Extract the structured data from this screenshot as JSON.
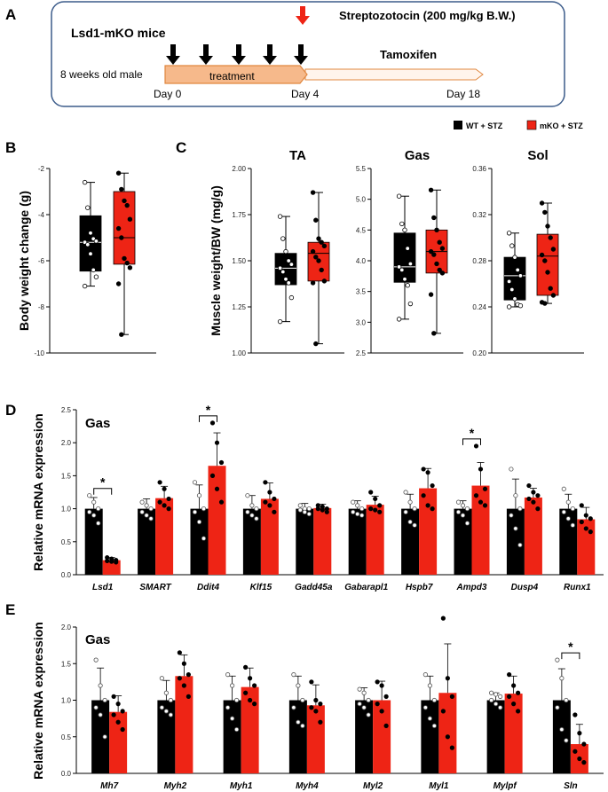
{
  "panel_labels": {
    "a": "A",
    "b": "B",
    "c": "C",
    "d": "D",
    "e": "E"
  },
  "legend": {
    "wt": "WT + STZ",
    "mko": "mKO + STZ"
  },
  "colors": {
    "wt": "#000000",
    "mko": "#ee2415",
    "arrow_black": "#000000",
    "arrow_red": "#ee2415",
    "box_border": "#3b5b8a",
    "treat_fill": "#f6b98b",
    "treat_border": "#e0873f",
    "tam_fill": "#fff4ec"
  },
  "schema": {
    "mice": "Lsd1-mKO mice",
    "stz": "Streptozotocin (200 mg/kg B.W.)",
    "tamoxifen": "Tamoxifen",
    "age": "8 weeks old male",
    "treatment": "treatment",
    "day0": "Day 0",
    "day4": "Day 4",
    "day18": "Day 18"
  },
  "chart_data": [
    {
      "id": "B",
      "type": "box",
      "title": "",
      "ylabel": "Body weight change (g)",
      "ylim": [
        -10,
        -2
      ],
      "yticks": [
        -10,
        -8,
        -6,
        -4,
        -2
      ],
      "tick_labels": [
        "-10",
        "-8",
        "-6",
        "-4",
        "-2"
      ],
      "groups": [
        {
          "name": "WT + STZ",
          "min": -7.1,
          "q1": -6.45,
          "median": -5.2,
          "q3": -4.05,
          "max": -2.6,
          "points": [
            -2.6,
            -3.7,
            -4.8,
            -5.05,
            -5.15,
            -5.2,
            -5.3,
            -5.7,
            -6.4,
            -6.7,
            -7.1
          ]
        },
        {
          "name": "mKO + STZ",
          "min": -9.2,
          "q1": -6.15,
          "median": -5.0,
          "q3": -3.0,
          "max": -2.2,
          "points": [
            -2.2,
            -2.9,
            -3.4,
            -3.6,
            -4.2,
            -4.6,
            -5.0,
            -5.9,
            -6.1,
            -6.3,
            -7.0,
            -9.2
          ]
        }
      ]
    },
    {
      "id": "C-TA",
      "type": "box",
      "title": "TA",
      "ylabel": "Muscle weight/BW (mg/g)",
      "ylim": [
        1.0,
        2.0
      ],
      "yticks": [
        1.0,
        1.25,
        1.5,
        1.75,
        2.0
      ],
      "tick_labels": [
        "1.00",
        "1.25",
        "1.50",
        "1.75",
        "2.00"
      ],
      "groups": [
        {
          "name": "WT + STZ",
          "min": 1.17,
          "q1": 1.37,
          "median": 1.46,
          "q3": 1.54,
          "max": 1.74,
          "points": [
            1.74,
            1.62,
            1.55,
            1.5,
            1.48,
            1.46,
            1.44,
            1.4,
            1.38,
            1.3,
            1.17
          ]
        },
        {
          "name": "mKO + STZ",
          "min": 1.05,
          "q1": 1.39,
          "median": 1.54,
          "q3": 1.6,
          "max": 1.87,
          "points": [
            1.87,
            1.72,
            1.62,
            1.6,
            1.58,
            1.55,
            1.52,
            1.5,
            1.45,
            1.39,
            1.38,
            1.05
          ]
        }
      ]
    },
    {
      "id": "C-Gas",
      "type": "box",
      "title": "Gas",
      "ylabel": "",
      "ylim": [
        2.5,
        5.5
      ],
      "yticks": [
        2.5,
        3.0,
        3.5,
        4.0,
        4.5,
        5.0,
        5.5
      ],
      "tick_labels": [
        "2.5",
        "3.0",
        "3.5",
        "4.0",
        "4.5",
        "5.0",
        "5.5"
      ],
      "groups": [
        {
          "name": "WT + STZ",
          "min": 3.05,
          "q1": 3.65,
          "median": 3.9,
          "q3": 4.45,
          "max": 5.05,
          "points": [
            5.05,
            4.6,
            4.5,
            4.2,
            3.95,
            3.9,
            3.85,
            3.7,
            3.6,
            3.3,
            3.05
          ]
        },
        {
          "name": "mKO + STZ",
          "min": 2.82,
          "q1": 3.8,
          "median": 4.15,
          "q3": 4.5,
          "max": 5.15,
          "points": [
            5.15,
            4.7,
            4.5,
            4.3,
            4.2,
            4.15,
            4.1,
            3.95,
            3.85,
            3.8,
            3.45,
            2.82
          ]
        }
      ]
    },
    {
      "id": "C-Sol",
      "type": "box",
      "title": "Sol",
      "ylabel": "",
      "ylim": [
        0.2,
        0.36
      ],
      "yticks": [
        0.2,
        0.24,
        0.28,
        0.32,
        0.36
      ],
      "tick_labels": [
        "0.20",
        "0.24",
        "0.28",
        "0.32",
        "0.36"
      ],
      "groups": [
        {
          "name": "WT + STZ",
          "min": 0.24,
          "q1": 0.246,
          "median": 0.267,
          "q3": 0.283,
          "max": 0.304,
          "points": [
            0.304,
            0.293,
            0.283,
            0.272,
            0.267,
            0.262,
            0.255,
            0.247,
            0.242,
            0.241,
            0.24
          ]
        },
        {
          "name": "mKO + STZ",
          "min": 0.243,
          "q1": 0.25,
          "median": 0.284,
          "q3": 0.303,
          "max": 0.33,
          "points": [
            0.33,
            0.322,
            0.31,
            0.3,
            0.29,
            0.285,
            0.28,
            0.27,
            0.256,
            0.25,
            0.244,
            0.243
          ]
        }
      ]
    },
    {
      "id": "D",
      "type": "bar",
      "title": "Gas",
      "ylabel": "Relative mRNA expression",
      "ylim": [
        0,
        2.5
      ],
      "yticks": [
        0,
        0.5,
        1.0,
        1.5,
        2.0,
        2.5
      ],
      "tick_labels": [
        "0.0",
        "0.5",
        "1.0",
        "1.5",
        "2.0",
        "2.5"
      ],
      "categories": [
        "Lsd1",
        "SMART",
        "Ddit4",
        "Klf15",
        "Gadd45a",
        "Gabarapl1",
        "Hspb7",
        "Ampd3",
        "Dusp4",
        "Runx1"
      ],
      "series": [
        {
          "name": "WT + STZ",
          "values": [
            1.0,
            1.0,
            1.0,
            1.0,
            1.0,
            1.0,
            1.0,
            1.0,
            1.0,
            1.0
          ],
          "errors": [
            0.17,
            0.15,
            0.36,
            0.2,
            0.08,
            0.12,
            0.22,
            0.12,
            0.45,
            0.22
          ],
          "points": [
            [
              1.2,
              1.1,
              1.0,
              0.95,
              0.9,
              0.78
            ],
            [
              1.1,
              1.05,
              1.0,
              0.95,
              0.9,
              0.85
            ],
            [
              1.4,
              1.2,
              1.0,
              0.95,
              0.8,
              0.55
            ],
            [
              1.2,
              1.05,
              1.0,
              0.95,
              0.9,
              0.85
            ],
            [
              1.05,
              1.0,
              1.0,
              0.98,
              0.95,
              0.92
            ],
            [
              1.1,
              1.05,
              1.0,
              0.95,
              0.92,
              0.9
            ],
            [
              1.25,
              1.1,
              1.0,
              0.95,
              0.8,
              0.75
            ],
            [
              1.1,
              1.05,
              1.0,
              0.95,
              0.9,
              0.78
            ],
            [
              1.6,
              1.2,
              1.0,
              0.9,
              0.7,
              0.45
            ],
            [
              1.3,
              1.1,
              1.0,
              0.95,
              0.85,
              0.75
            ]
          ]
        },
        {
          "name": "mKO + STZ",
          "values": [
            0.22,
            1.16,
            1.65,
            1.15,
            1.01,
            1.06,
            1.31,
            1.35,
            1.17,
            0.84
          ],
          "errors": [
            0.04,
            0.18,
            0.5,
            0.24,
            0.06,
            0.13,
            0.3,
            0.35,
            0.14,
            0.18
          ],
          "points": [
            [
              0.26,
              0.24,
              0.22,
              0.21,
              0.2,
              0.19
            ],
            [
              1.4,
              1.3,
              1.15,
              1.1,
              1.05,
              1.0
            ],
            [
              2.3,
              2.0,
              1.7,
              1.5,
              1.3,
              1.1
            ],
            [
              1.4,
              1.25,
              1.15,
              1.1,
              1.05,
              0.95
            ],
            [
              1.05,
              1.03,
              1.0,
              1.0,
              0.98,
              0.95
            ],
            [
              1.25,
              1.15,
              1.05,
              1.0,
              0.98,
              0.95
            ],
            [
              1.6,
              1.55,
              1.35,
              1.2,
              1.05,
              1.0
            ],
            [
              1.95,
              1.6,
              1.3,
              1.2,
              1.1,
              1.05
            ],
            [
              1.35,
              1.25,
              1.2,
              1.15,
              1.1,
              1.0
            ],
            [
              1.05,
              0.9,
              0.85,
              0.8,
              0.7,
              0.65
            ]
          ]
        }
      ],
      "significance": [
        {
          "category": "Lsd1",
          "label": "*"
        },
        {
          "category": "Ddit4",
          "label": "*"
        },
        {
          "category": "Ampd3",
          "label": "*"
        }
      ]
    },
    {
      "id": "E",
      "type": "bar",
      "title": "Gas",
      "ylabel": "Relative mRNA expression",
      "ylim": [
        0,
        2.0
      ],
      "yticks": [
        0,
        0.5,
        1.0,
        1.5,
        2.0
      ],
      "tick_labels": [
        "0.0",
        "0.5",
        "1.0",
        "1.5",
        "2.0"
      ],
      "categories": [
        "Mh7",
        "Myh2",
        "Myh1",
        "Myh4",
        "Myl2",
        "Myl1",
        "Mylpf",
        "Sln"
      ],
      "series": [
        {
          "name": "WT + STZ",
          "values": [
            1.0,
            1.0,
            1.0,
            1.0,
            1.0,
            1.0,
            1.0,
            1.0
          ],
          "errors": [
            0.44,
            0.27,
            0.33,
            0.33,
            0.17,
            0.33,
            0.1,
            0.43
          ],
          "points": [
            [
              1.55,
              1.2,
              1.0,
              0.9,
              0.8,
              0.5
            ],
            [
              1.3,
              1.1,
              1.0,
              0.9,
              0.85,
              0.8
            ],
            [
              1.35,
              1.2,
              1.0,
              0.9,
              0.75,
              0.6
            ],
            [
              1.35,
              1.2,
              1.0,
              0.9,
              0.7,
              0.65
            ],
            [
              1.15,
              1.1,
              1.0,
              0.95,
              0.9,
              0.8
            ],
            [
              1.35,
              1.2,
              1.0,
              0.9,
              0.75,
              0.65
            ],
            [
              1.1,
              1.08,
              1.05,
              1.0,
              0.95,
              0.9
            ],
            [
              1.55,
              1.3,
              1.0,
              0.9,
              0.6,
              0.45
            ]
          ]
        },
        {
          "name": "mKO + STZ",
          "values": [
            0.84,
            1.33,
            1.18,
            0.93,
            1.0,
            1.1,
            1.09,
            0.4
          ],
          "errors": [
            0.22,
            0.29,
            0.26,
            0.28,
            0.26,
            0.67,
            0.24,
            0.27
          ],
          "points": [
            [
              1.05,
              0.95,
              0.85,
              0.8,
              0.7,
              0.6
            ],
            [
              1.65,
              1.5,
              1.35,
              1.3,
              1.2,
              1.05
            ],
            [
              1.45,
              1.3,
              1.2,
              1.1,
              1.0,
              0.95
            ],
            [
              1.25,
              1.0,
              0.95,
              0.9,
              0.85,
              0.7
            ],
            [
              1.25,
              1.2,
              1.05,
              0.95,
              0.85,
              0.65
            ],
            [
              2.12,
              1.3,
              1.05,
              0.85,
              0.5,
              0.35
            ],
            [
              1.35,
              1.2,
              1.1,
              1.05,
              0.95,
              0.85
            ],
            [
              0.8,
              0.55,
              0.4,
              0.3,
              0.2,
              0.15
            ]
          ]
        }
      ],
      "significance": [
        {
          "category": "Sln",
          "label": "*"
        }
      ]
    }
  ]
}
